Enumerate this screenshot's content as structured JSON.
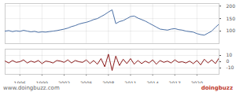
{
  "chart_data": [
    {
      "type": "line",
      "color": "#4a6fa5",
      "grid": true,
      "tick_labels": "y",
      "x": [
        1994,
        1994.5,
        1995,
        1995.5,
        1996,
        1996.5,
        1997,
        1997.5,
        1998,
        1998.5,
        1999,
        1999.5,
        2000,
        2000.5,
        2001,
        2001.5,
        2002,
        2002.5,
        2003,
        2003.5,
        2004,
        2004.5,
        2005,
        2005.5,
        2006,
        2006.5,
        2007,
        2007.5,
        2008,
        2008.5,
        2009,
        2009.5,
        2010,
        2010.5,
        2011,
        2011.5,
        2012,
        2012.5,
        2013,
        2013.5,
        2014,
        2014.5,
        2015,
        2015.5,
        2016,
        2016.5,
        2017,
        2017.5,
        2018,
        2018.5,
        2019,
        2019.5,
        2020,
        2020.5,
        2021,
        2021.5,
        2022,
        2022.5,
        2023
      ],
      "values": [
        100,
        102,
        98,
        101,
        99,
        103,
        100,
        97,
        99,
        95,
        97,
        96,
        98,
        100,
        102,
        105,
        108,
        112,
        118,
        122,
        128,
        132,
        135,
        140,
        146,
        150,
        158,
        166,
        176,
        185,
        130,
        138,
        142,
        150,
        158,
        160,
        152,
        146,
        140,
        132,
        124,
        116,
        108,
        106,
        104,
        108,
        110,
        106,
        104,
        100,
        98,
        96,
        90,
        86,
        84,
        92,
        100,
        115,
        128
      ],
      "xlim": [
        1994,
        2023
      ],
      "xticks": [
        1996,
        1999,
        2002,
        2005,
        2008,
        2011,
        2014,
        2017,
        2020
      ],
      "ylim": [
        50,
        210
      ],
      "yticks": [
        100,
        150,
        200
      ],
      "annotations": [
        "www.doingbuzz.com",
        "doingbuzz"
      ]
    },
    {
      "type": "line",
      "color": "#8b1a1a",
      "grid": true,
      "tick_labels": true,
      "x": [
        1994,
        1994.5,
        1995,
        1995.5,
        1996,
        1996.5,
        1997,
        1997.5,
        1998,
        1998.5,
        1999,
        1999.5,
        2000,
        2000.5,
        2001,
        2001.5,
        2002,
        2002.5,
        2003,
        2003.5,
        2004,
        2004.5,
        2005,
        2005.5,
        2006,
        2006.5,
        2007,
        2007.5,
        2008,
        2008.5,
        2009,
        2009.5,
        2010,
        2010.5,
        2011,
        2011.5,
        2012,
        2012.5,
        2013,
        2013.5,
        2014,
        2014.5,
        2015,
        2015.5,
        2016,
        2016.5,
        2017,
        2017.5,
        2018,
        2018.5,
        2019,
        2019.5,
        2020,
        2020.5,
        2021,
        2021.5,
        2022,
        2022.5,
        2023
      ],
      "values": [
        1,
        -2,
        2,
        -1,
        0,
        3,
        -2,
        1,
        -1,
        2,
        -3,
        1,
        0,
        -2,
        2,
        1,
        -1,
        3,
        -2,
        2,
        0,
        -1,
        3,
        -3,
        2,
        -4,
        5,
        -8,
        12,
        -14,
        9,
        -6,
        4,
        -3,
        5,
        -4,
        2,
        -3,
        1,
        -2,
        3,
        -4,
        2,
        -1,
        1,
        -2,
        3,
        -1,
        0,
        -2,
        1,
        -3,
        2,
        -5,
        4,
        -2,
        3,
        -3,
        6
      ],
      "xlim": [
        1994,
        2023
      ],
      "xticks": [
        1996,
        1999,
        2002,
        2005,
        2008,
        2011,
        2014,
        2017,
        2020
      ],
      "ylim": [
        -20,
        20
      ],
      "yticks": [
        -10,
        0,
        10
      ]
    }
  ]
}
